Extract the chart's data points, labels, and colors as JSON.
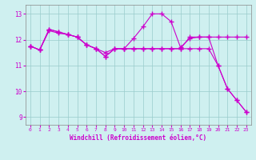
{
  "xlabel": "Windchill (Refroidissement éolien,°C)",
  "bg_color": "#cff0f0",
  "line_color": "#cc00cc",
  "grid_color": "#99cccc",
  "ylim": [
    8.7,
    13.35
  ],
  "xlim": [
    -0.5,
    23.5
  ],
  "yticks": [
    9,
    10,
    11,
    12,
    13
  ],
  "xticks": [
    0,
    1,
    2,
    3,
    4,
    5,
    6,
    7,
    8,
    9,
    10,
    11,
    12,
    13,
    14,
    15,
    16,
    17,
    18,
    19,
    20,
    21,
    22,
    23
  ],
  "series1_x": [
    0,
    1,
    2,
    3,
    4,
    5,
    6,
    7,
    8,
    9,
    10,
    11,
    12,
    13,
    14,
    15,
    16,
    17,
    18,
    19,
    20,
    21,
    22,
    23
  ],
  "series1_y": [
    11.75,
    11.6,
    12.4,
    12.3,
    12.2,
    12.1,
    11.8,
    11.65,
    11.35,
    11.65,
    11.65,
    12.05,
    12.5,
    13.0,
    13.0,
    12.7,
    11.7,
    12.05,
    12.1,
    12.1,
    11.0,
    10.1,
    9.65,
    9.2
  ],
  "series2_x": [
    0,
    1,
    2,
    3,
    4,
    5,
    6,
    7,
    8,
    9,
    10,
    11,
    12,
    13,
    14,
    15,
    16,
    17,
    18,
    19,
    20,
    21,
    22,
    23
  ],
  "series2_y": [
    11.75,
    11.6,
    12.35,
    12.25,
    12.2,
    12.1,
    11.8,
    11.65,
    11.5,
    11.65,
    11.65,
    11.65,
    11.65,
    11.65,
    11.65,
    11.65,
    11.65,
    12.1,
    12.1,
    12.1,
    12.1,
    12.1,
    12.1,
    12.1
  ],
  "series3_x": [
    0,
    1,
    2,
    3,
    4,
    5,
    6,
    7,
    8,
    9,
    10,
    11,
    12,
    13,
    14,
    15,
    16,
    17,
    18,
    19,
    20,
    21,
    22,
    23
  ],
  "series3_y": [
    11.75,
    11.6,
    12.4,
    12.3,
    12.2,
    12.1,
    11.8,
    11.65,
    11.35,
    11.65,
    11.65,
    11.65,
    11.65,
    11.65,
    11.65,
    11.65,
    11.65,
    11.65,
    11.65,
    11.65,
    11.0,
    10.1,
    9.65,
    9.2
  ]
}
